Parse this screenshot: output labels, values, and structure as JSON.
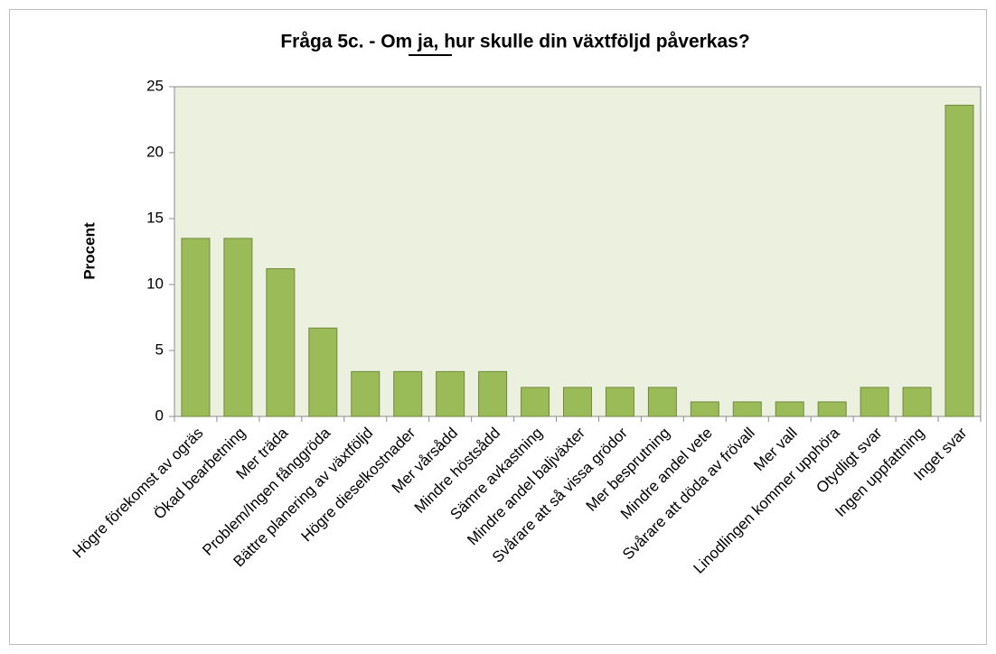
{
  "chart_data": {
    "type": "bar",
    "title": "Fråga 5c. - Om ja, hur skulle din växtföljd påverkas?",
    "ylabel": "Procent",
    "categories": [
      "Högre förekomst av ogräs",
      "Ökad bearbetning",
      "Mer träda",
      "Problem/Ingen fånggröda",
      "Bättre planering av växtföljd",
      "Högre dieselkostnader",
      "Mer vårsådd",
      "Mindre höstsådd",
      "Sämre avkastning",
      "Mindre andel baljväxter",
      "Svårare att så vissa grödor",
      "Mer besprutning",
      "Mindre andel vete",
      "Svårare att döda av frövall",
      "Mer vall",
      "Linodlingen kommer upphöra",
      "Otydligt svar",
      "Ingen uppfattning",
      "Inget svar"
    ],
    "values": [
      13.5,
      13.5,
      11.2,
      6.7,
      3.4,
      3.4,
      3.4,
      3.4,
      2.2,
      2.2,
      2.2,
      2.2,
      1.1,
      1.1,
      1.1,
      1.1,
      2.2,
      2.2,
      23.6
    ],
    "color": "#9bbb59",
    "ylim": [
      0,
      25
    ],
    "yticks": [
      0,
      5,
      10,
      15,
      20,
      25
    ],
    "grid": false
  }
}
